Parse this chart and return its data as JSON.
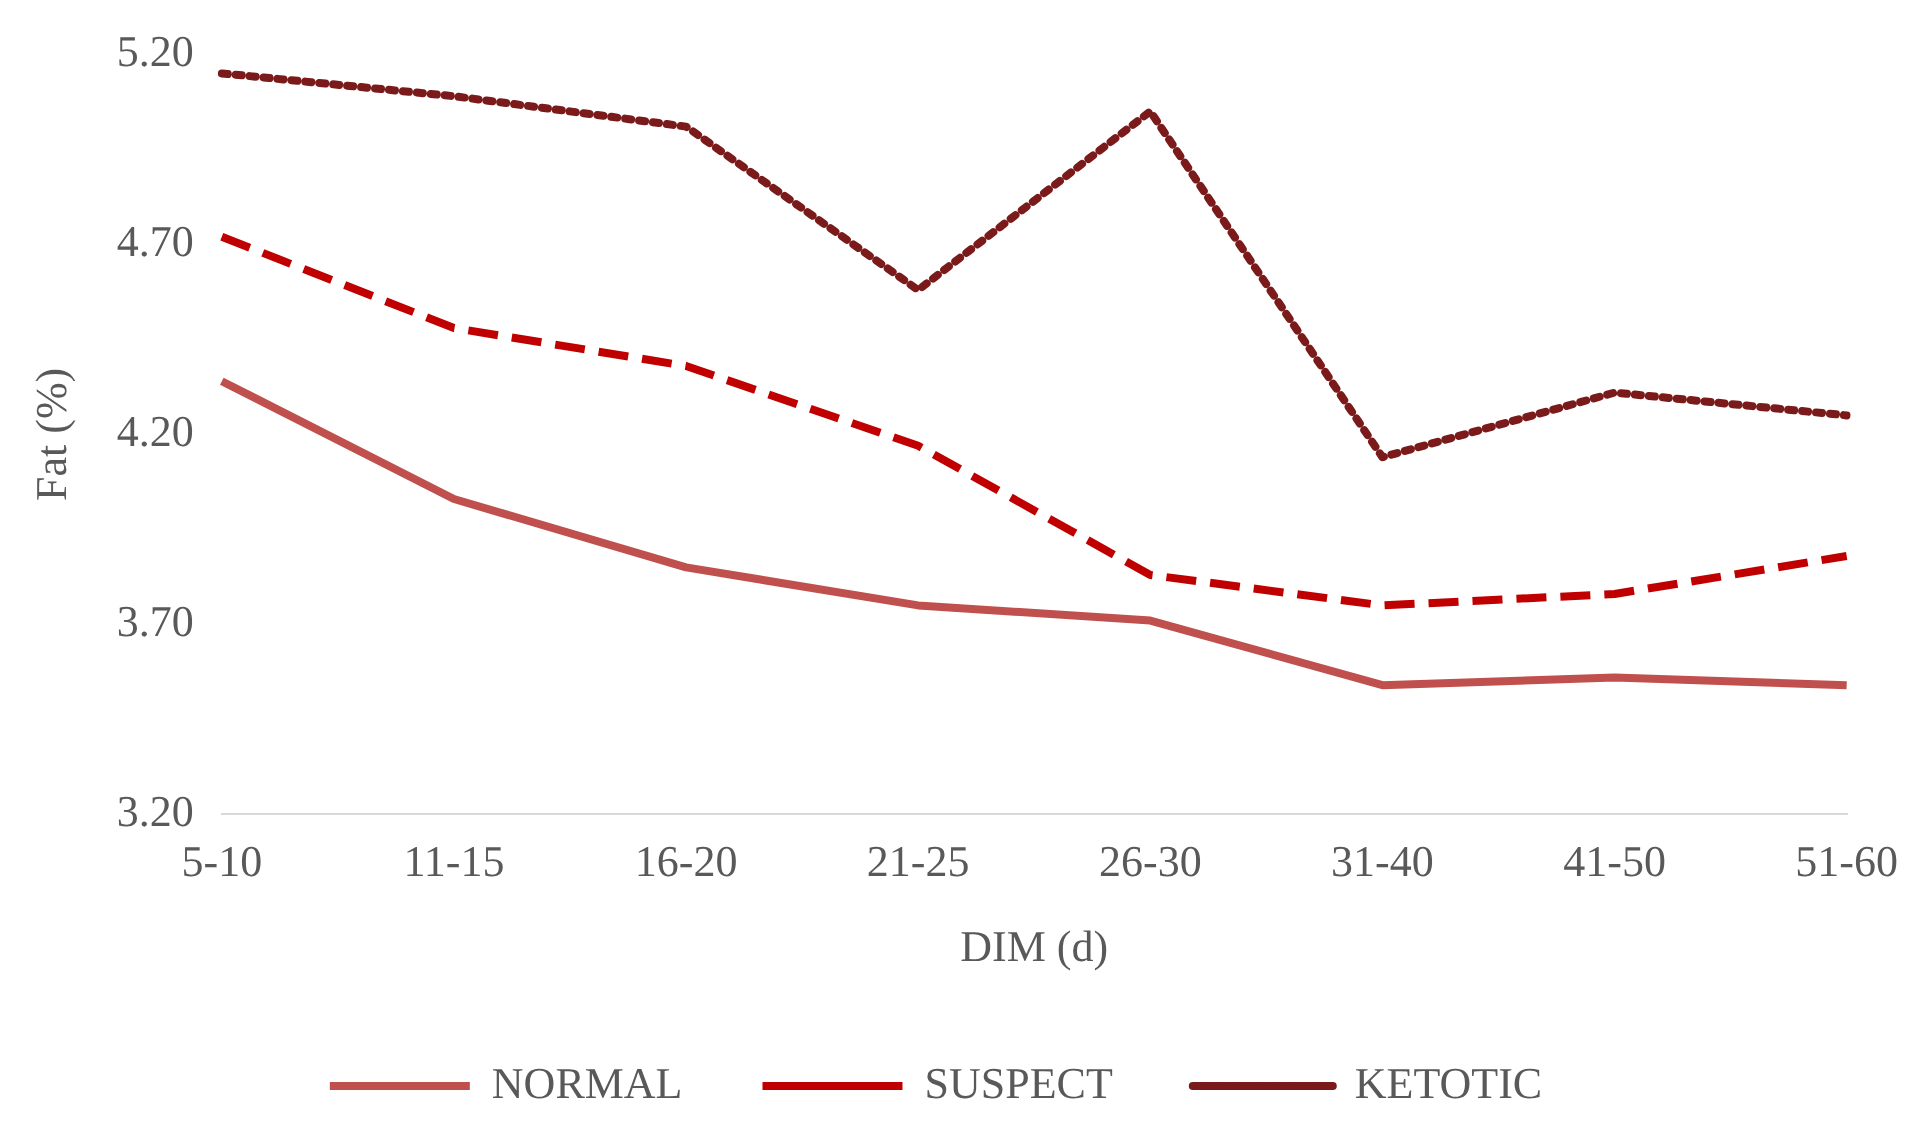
{
  "chart_data": {
    "type": "line",
    "xlabel": "DIM (d)",
    "ylabel": "Fat (%)",
    "categories": [
      "5-10",
      "11-15",
      "16-20",
      "21-25",
      "26-30",
      "31-40",
      "41-50",
      "51-60"
    ],
    "series": [
      {
        "name": "NORMAL",
        "color": "#c0504d",
        "line_style": "solid",
        "values": [
          4.34,
          4.03,
          3.85,
          3.75,
          3.71,
          3.54,
          3.56,
          3.54
        ]
      },
      {
        "name": "SUSPECT",
        "color": "#c00000",
        "line_style": "dashed",
        "values": [
          4.72,
          4.48,
          4.38,
          4.17,
          3.83,
          3.75,
          3.78,
          3.88
        ]
      },
      {
        "name": "KETOTIC",
        "color": "#7b1a1a",
        "line_style": "dotted",
        "values": [
          5.15,
          5.09,
          5.01,
          4.58,
          5.05,
          4.14,
          4.31,
          4.25
        ]
      }
    ],
    "ylim": [
      3.2,
      5.2
    ],
    "yticks": [
      {
        "value": 3.2,
        "label": "3.20"
      },
      {
        "value": 3.7,
        "label": "3.70"
      },
      {
        "value": 4.2,
        "label": "4.20"
      },
      {
        "value": 4.7,
        "label": "4.70"
      },
      {
        "value": 5.2,
        "label": "5.20"
      }
    ],
    "grid": false,
    "legend": "bottom",
    "marker": "none"
  }
}
